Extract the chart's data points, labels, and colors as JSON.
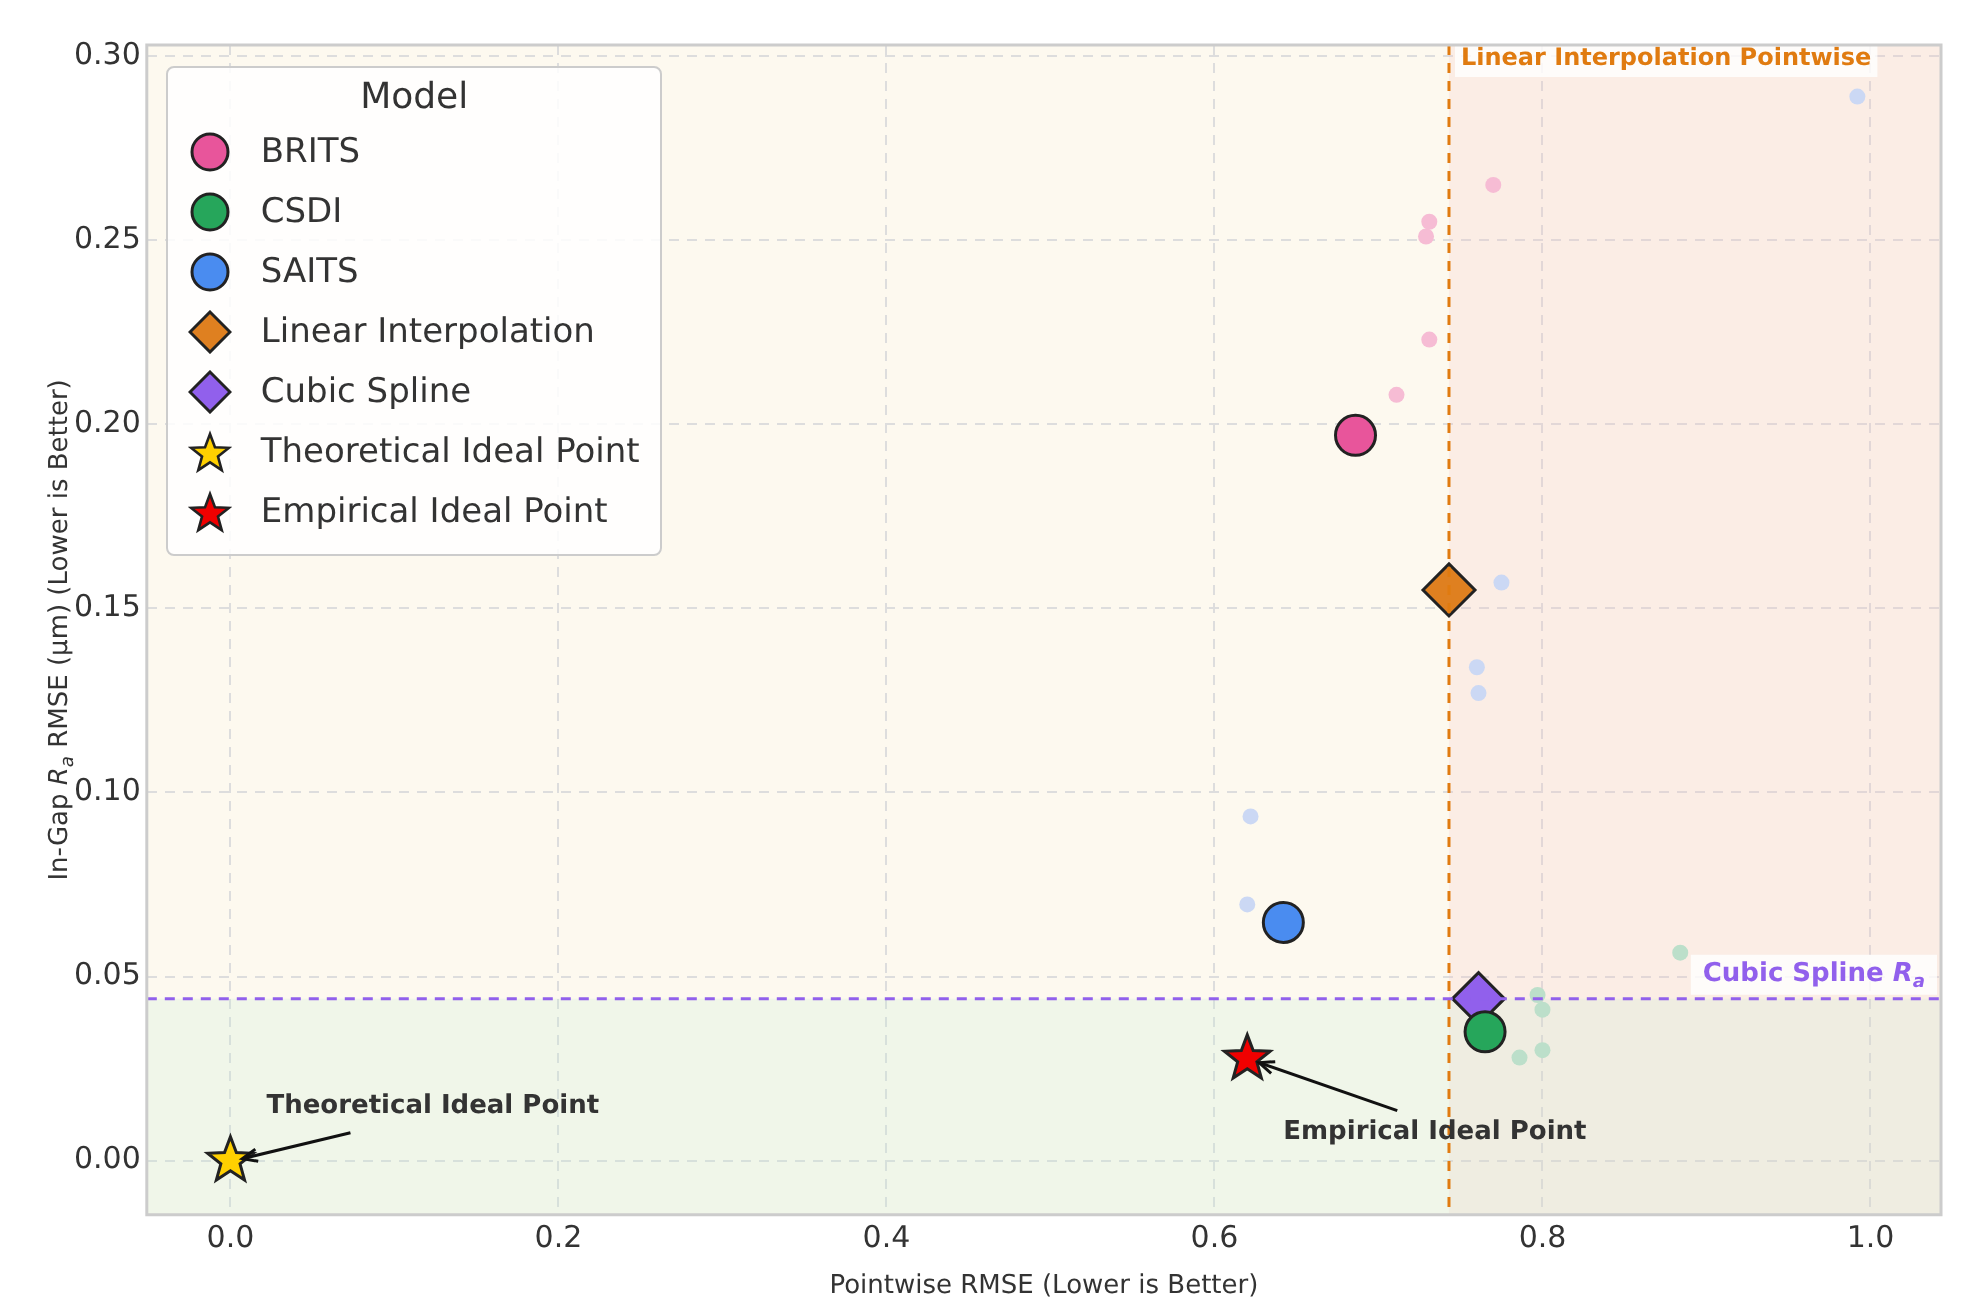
{
  "chart_data": {
    "type": "scatter",
    "xlabel": "Pointwise RMSE (Lower is Better)",
    "ylabel": "In-Gap R$_{a}$ RMSE (µm) (Lower is Better)",
    "legend_title": "Model",
    "xlim": [
      -0.051,
      1.043
    ],
    "ylim": [
      -0.0147,
      0.303
    ],
    "xticks": [
      {
        "value": 0,
        "label": "0.0"
      },
      {
        "value": 0.2,
        "label": "0.2"
      },
      {
        "value": 0.4,
        "label": "0.4"
      },
      {
        "value": 0.6,
        "label": "0.6"
      },
      {
        "value": 0.8,
        "label": "0.8"
      },
      {
        "value": 1,
        "label": "1.0"
      }
    ],
    "yticks": [
      {
        "value": 0,
        "label": "0.00"
      },
      {
        "value": 0.05,
        "label": "0.05"
      },
      {
        "value": 0.1,
        "label": "0.10"
      },
      {
        "value": 0.15,
        "label": "0.15"
      },
      {
        "value": 0.2,
        "label": "0.20"
      },
      {
        "value": 0.25,
        "label": "0.25"
      },
      {
        "value": 0.3,
        "label": "0.30"
      }
    ],
    "grid": true,
    "legend": "top left",
    "series": [
      {
        "name": "BRITS",
        "color": "#e8559b",
        "marker": "circle",
        "x": [
          0.686
        ],
        "values": [
          0.197
        ]
      },
      {
        "name": "CSDI",
        "color": "#26a65b",
        "marker": "circle",
        "x": [
          0.765
        ],
        "values": [
          0.035
        ]
      },
      {
        "name": "SAITS",
        "color": "#4a8cf0",
        "marker": "circle",
        "x": [
          0.642
        ],
        "values": [
          0.0647
        ]
      },
      {
        "name": "Linear Interpolation",
        "color": "#df8020",
        "marker": "diamond",
        "x": [
          0.743
        ],
        "values": [
          0.155
        ]
      },
      {
        "name": "Cubic Spline",
        "color": "#9160ec",
        "marker": "diamond",
        "x": [
          0.761
        ],
        "values": [
          0.044
        ]
      },
      {
        "name": "Theoretical Ideal Point",
        "color": "#ffd000",
        "marker": "star",
        "x": [
          0
        ],
        "values": [
          0
        ]
      },
      {
        "name": "Empirical Ideal Point",
        "color": "#f00000",
        "marker": "star",
        "x": [
          0.62
        ],
        "values": [
          0.0277
        ]
      },
      {
        "color": "#f6bcd4",
        "marker": "circle",
        "x": [
          0.77,
          0.731,
          0.729,
          0.731,
          0.711
        ],
        "values": [
          0.265,
          0.255,
          0.251,
          0.223,
          0.208
        ]
      },
      {
        "color": "#cbd8f4",
        "marker": "circle",
        "x": [
          0.992,
          0.775,
          0.76,
          0.761,
          0.622,
          0.62
        ],
        "values": [
          0.289,
          0.157,
          0.134,
          0.127,
          0.0935,
          0.0696
        ]
      },
      {
        "color": "#bcdfca",
        "marker": "circle",
        "x": [
          0.884,
          0.797,
          0.8,
          0.8,
          0.786
        ],
        "values": [
          0.0565,
          0.045,
          0.041,
          0.03,
          0.028
        ]
      }
    ],
    "ref_lines": [
      {
        "axis": "x",
        "value": 0.743,
        "label": "Linear Interpolation Pointwise",
        "color": "#e07b10",
        "line_style": "dashed"
      },
      {
        "axis": "y",
        "value": 0.044,
        "label": "Cubic Spline R$_{a}$",
        "color": "#9160ec",
        "line_style": "dashed"
      }
    ],
    "bands": [
      {
        "axis": "x",
        "from": 0.743,
        "to": 1.043,
        "color": "#f5c6c6"
      },
      {
        "axis": "y",
        "from": -0.0147,
        "to": 0.044,
        "color": "#c6ecd6"
      }
    ],
    "annotations": [
      {
        "text": "Theoretical Ideal Point",
        "x": 0,
        "y": 0
      },
      {
        "text": "Empirical Ideal Point",
        "x": 0.62,
        "y": 0.0277
      }
    ]
  }
}
